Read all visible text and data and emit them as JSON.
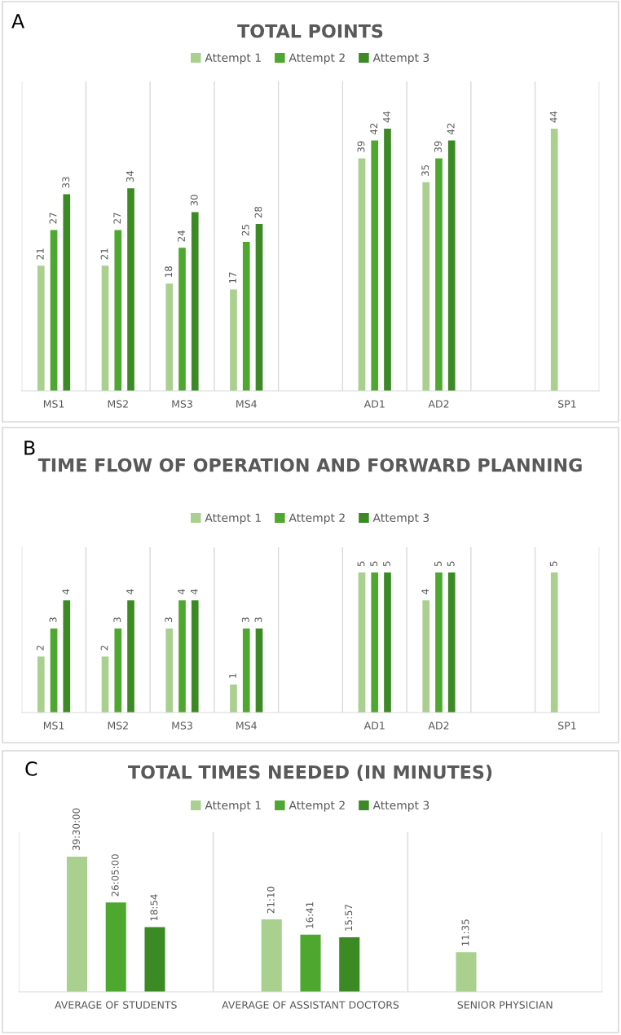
{
  "chart_data": [
    {
      "type": "bar",
      "title": "TOTAL POINTS",
      "annotations": [
        "A"
      ],
      "categories": [
        "MS1",
        "MS2",
        "MS3",
        "MS4",
        null,
        "AD1",
        "AD2",
        null,
        "SP1"
      ],
      "legend": "top",
      "grid": "x",
      "data_labels": true,
      "series": [
        {
          "name": "Attempt 1",
          "color": "#a9d08e",
          "values": [
            21,
            21,
            18,
            17,
            null,
            39,
            35,
            null,
            44
          ]
        },
        {
          "name": "Attempt 2",
          "color": "#4ea72e",
          "values": [
            27,
            27,
            24,
            25,
            null,
            42,
            39,
            null,
            null
          ]
        },
        {
          "name": "Attempt 3",
          "color": "#3b8a24",
          "values": [
            33,
            34,
            30,
            28,
            null,
            44,
            42,
            null,
            null
          ]
        }
      ]
    },
    {
      "type": "bar",
      "title": "TIME FLOW OF OPERATION AND FORWARD PLANNING",
      "annotations": [
        "B"
      ],
      "categories": [
        "MS1",
        "MS2",
        "MS3",
        "MS4",
        null,
        "AD1",
        "AD2",
        null,
        "SP1"
      ],
      "legend": "top",
      "grid": "x",
      "data_labels": true,
      "series": [
        {
          "name": "Attempt 1",
          "color": "#a9d08e",
          "values": [
            2,
            2,
            3,
            1,
            null,
            5,
            4,
            null,
            5
          ]
        },
        {
          "name": "Attempt 2",
          "color": "#4ea72e",
          "values": [
            3,
            3,
            4,
            3,
            null,
            5,
            5,
            null,
            null
          ]
        },
        {
          "name": "Attempt 3",
          "color": "#3b8a24",
          "values": [
            4,
            4,
            4,
            3,
            null,
            5,
            5,
            null,
            null
          ]
        }
      ]
    },
    {
      "type": "bar",
      "title": "TOTAL TIMES NEEDED (IN MINUTES)",
      "annotations": [
        "C"
      ],
      "categories": [
        "AVERAGE OF STUDENTS",
        "AVERAGE OF ASSISTANT DOCTORS",
        "SENIOR PHYSICIAN"
      ],
      "legend": "top",
      "grid": "x",
      "series": [
        {
          "name": "Attempt 1",
          "color": "#a9d08e",
          "values": [
            39.5,
            21.1667,
            11.5833
          ],
          "value_labels": [
            "39:30:00",
            "21:10",
            "11:35"
          ]
        },
        {
          "name": "Attempt 2",
          "color": "#4ea72e",
          "values": [
            26.0833,
            16.6833,
            null
          ],
          "value_labels": [
            "26:05:00",
            "16:41",
            null
          ]
        },
        {
          "name": "Attempt 3",
          "color": "#3b8a24",
          "values": [
            18.9,
            15.95,
            null
          ],
          "value_labels": [
            "18:54",
            "15:57",
            null
          ]
        }
      ]
    }
  ]
}
